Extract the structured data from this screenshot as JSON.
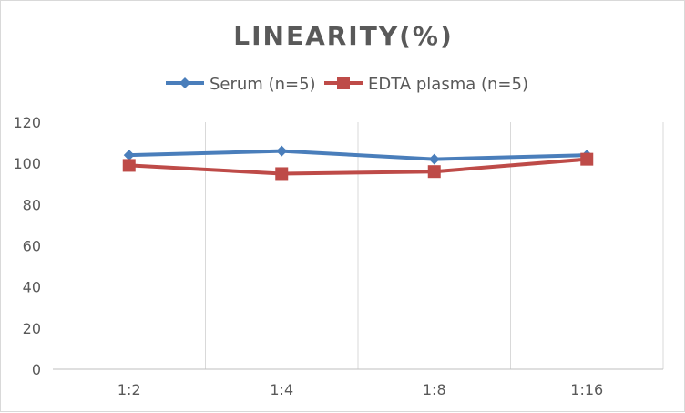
{
  "chart_data": {
    "type": "line",
    "title": "LINEARITY(%)",
    "categories": [
      "1:2",
      "1:4",
      "1:8",
      "1:16"
    ],
    "series": [
      {
        "name": "Serum (n=5)",
        "values": [
          104,
          106,
          102,
          104
        ],
        "color": "#4a7ebb",
        "marker": "diamond"
      },
      {
        "name": "EDTA plasma (n=5)",
        "values": [
          99,
          95,
          96,
          102
        ],
        "color": "#be4b48",
        "marker": "square"
      }
    ],
    "ylim": [
      0,
      120
    ],
    "yticks": [
      0,
      20,
      40,
      60,
      80,
      100,
      120
    ],
    "grid": "vertical",
    "legend": "top"
  }
}
